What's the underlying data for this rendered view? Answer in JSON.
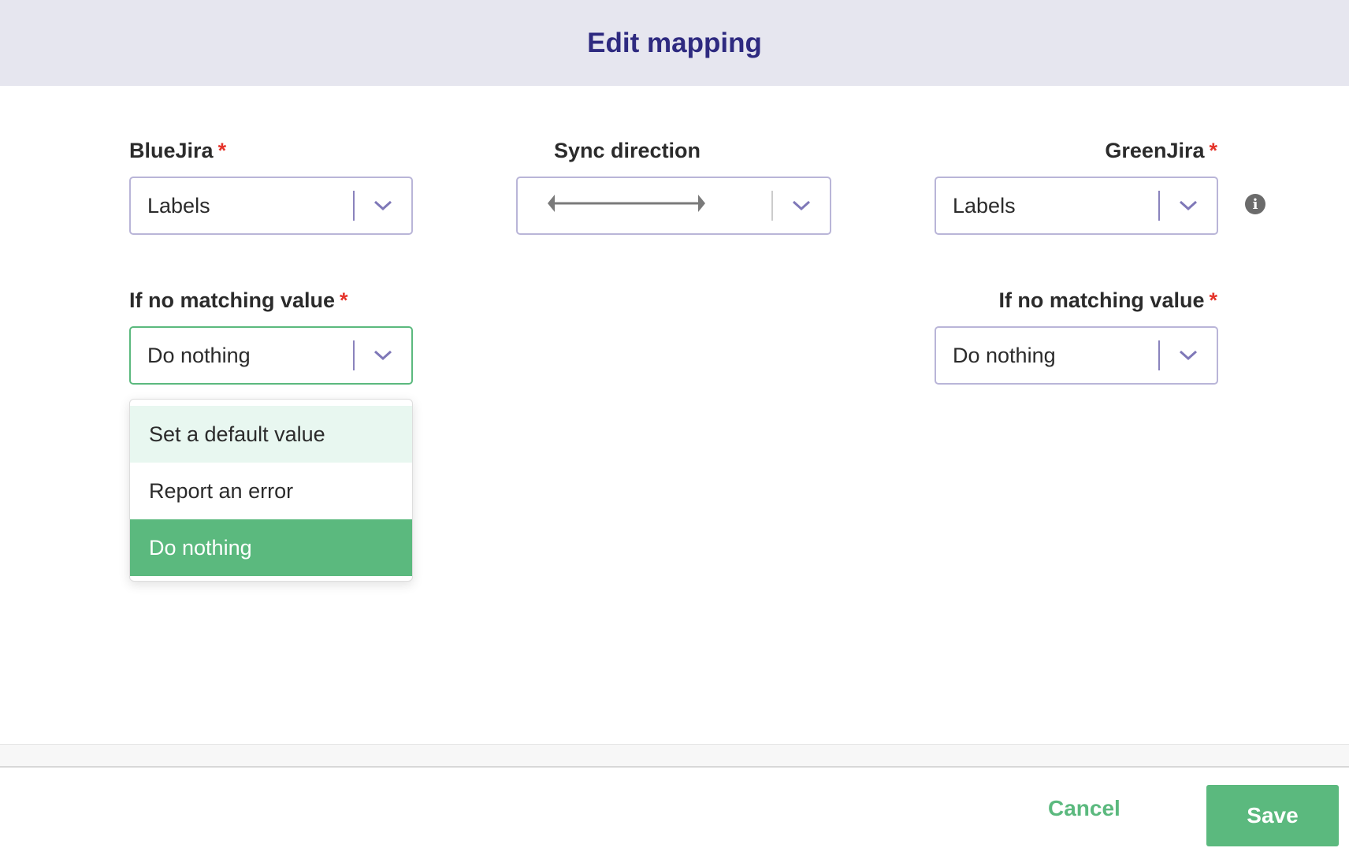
{
  "dialog": {
    "title": "Edit mapping"
  },
  "left": {
    "label": "BlueJira",
    "required": "*",
    "field_value": "Labels",
    "no_match_label": "If no matching value",
    "no_match_value": "Do nothing"
  },
  "middle": {
    "label": "Sync direction",
    "direction_icon": "bidirectional-arrow-icon"
  },
  "right": {
    "label": "GreenJira",
    "required": "*",
    "field_value": "Labels",
    "no_match_label": "If no matching value",
    "no_match_value": "Do nothing",
    "info_icon": "i"
  },
  "dropdown": {
    "options": [
      {
        "label": "Set a default value",
        "state": "hover"
      },
      {
        "label": "Report an error"
      },
      {
        "label": "Do nothing",
        "state": "selected"
      }
    ]
  },
  "footer": {
    "cancel": "Cancel",
    "save": "Save"
  },
  "colors": {
    "accent": "#5bb97e",
    "title": "#2e2a80",
    "header_bg": "#e6e6ef",
    "required": "#e5332a"
  }
}
